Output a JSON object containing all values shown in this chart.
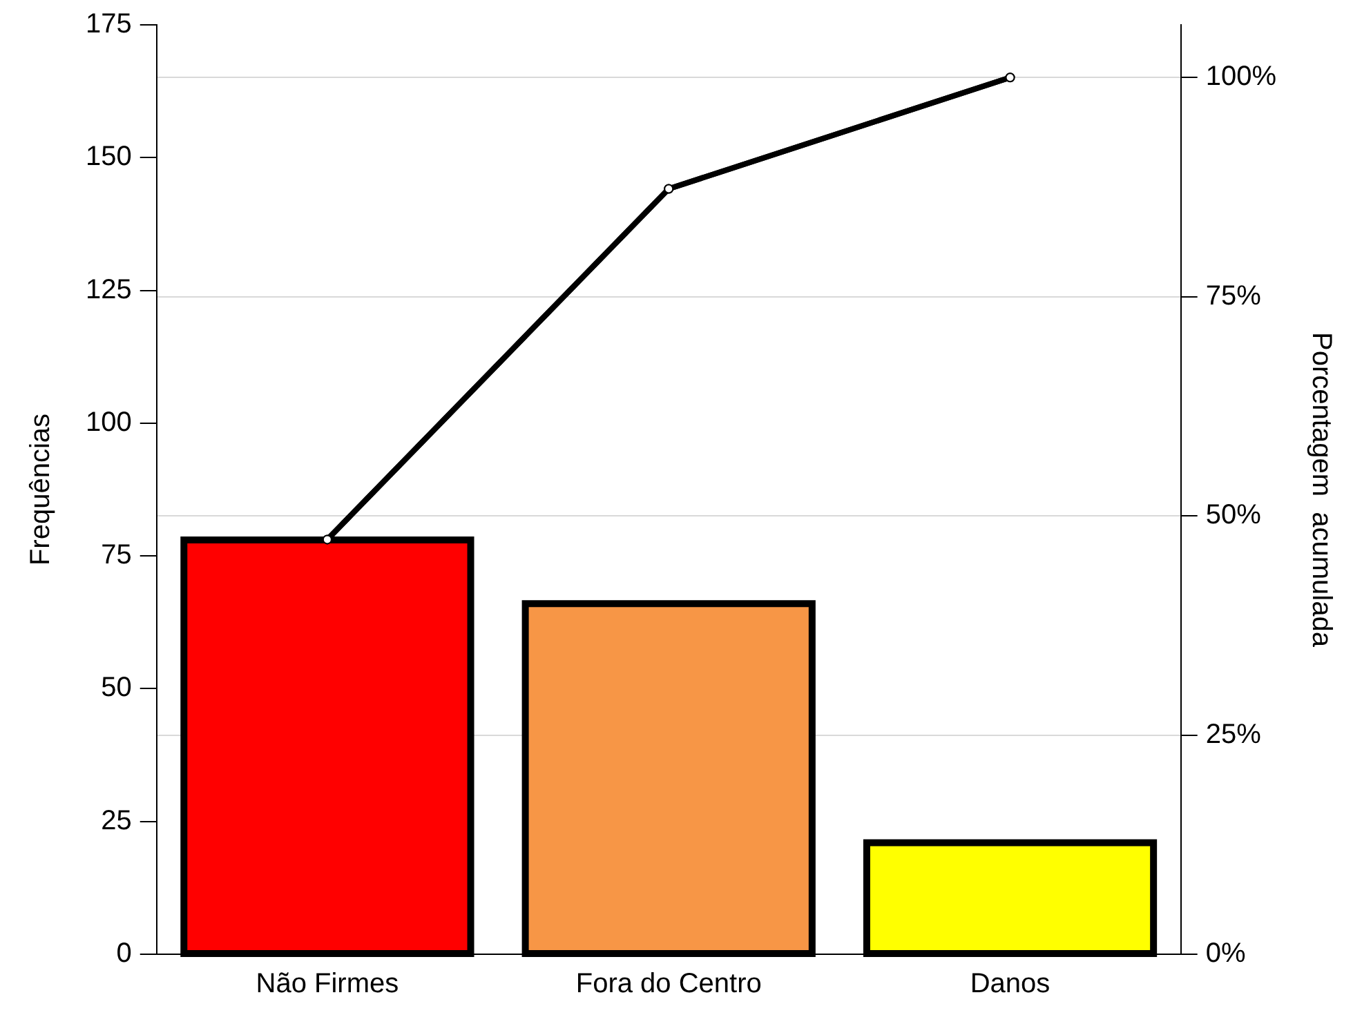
{
  "chart_data": {
    "type": "bar",
    "categories": [
      "Não Firmes",
      "Fora do Centro",
      "Danos"
    ],
    "ylabel": "Frequências",
    "y2label": "Porcentagem  acumulada",
    "series": [
      {
        "colors": [
          "#ff0000",
          "#f79646",
          "#ffff00"
        ],
        "values": [
          78,
          66,
          21
        ]
      },
      {
        "type": "line",
        "axis": "y2",
        "color": "#000000",
        "marker": "circle",
        "values": [
          47.3,
          87.3,
          100
        ]
      }
    ],
    "ylim": [
      0,
      175
    ],
    "yticks": [
      0,
      25,
      50,
      75,
      100,
      125,
      150,
      175
    ],
    "y2lim": [
      0,
      106
    ],
    "y2ticks": [
      {
        "value": 0,
        "label": "0%"
      },
      {
        "value": 25,
        "label": "25%"
      },
      {
        "value": 50,
        "label": "50%"
      },
      {
        "value": 75,
        "label": "75%"
      },
      {
        "value": 100,
        "label": "100%"
      }
    ],
    "grid": "y",
    "legend": false
  }
}
